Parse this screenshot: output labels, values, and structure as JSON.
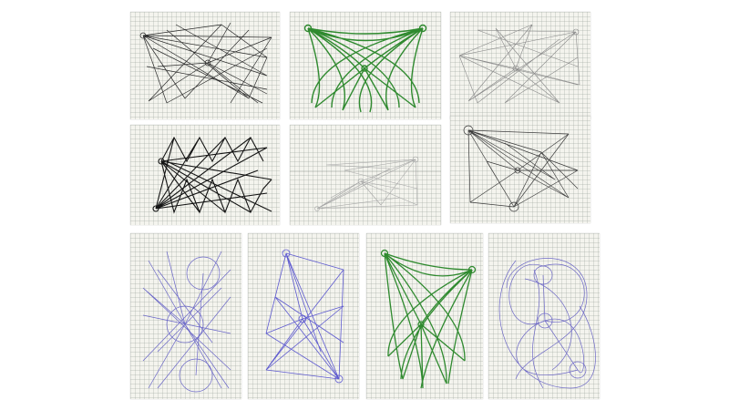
{
  "image": {
    "description": "",
    "sheets": [
      {
        "id": "r1-c1",
        "ink": "#2a2a2a",
        "style": "two-hub-web"
      },
      {
        "id": "r1-c2",
        "ink": "#2f8a2f",
        "style": "fan-curves"
      },
      {
        "id": "r1-c3",
        "ink": "#8a8a8a",
        "style": "two-hub-web"
      },
      {
        "id": "r2-c1",
        "ink": "#141414",
        "style": "zigzag-fan"
      },
      {
        "id": "r2-c2",
        "ink": "#a7a7a7",
        "style": "sparse-web"
      },
      {
        "id": "r2-c3",
        "ink": "#3d3d3d",
        "style": "circle-hub-web"
      },
      {
        "id": "r3-c1",
        "ink": "#6a66c8",
        "style": "circles-web"
      },
      {
        "id": "r3-c2",
        "ink": "#5e5ad0",
        "style": "diagonal-web"
      },
      {
        "id": "r3-c3",
        "ink": "#2f8a2f",
        "style": "fan-curves"
      },
      {
        "id": "r3-c4",
        "ink": "#6d68c6",
        "style": "loops"
      }
    ]
  }
}
